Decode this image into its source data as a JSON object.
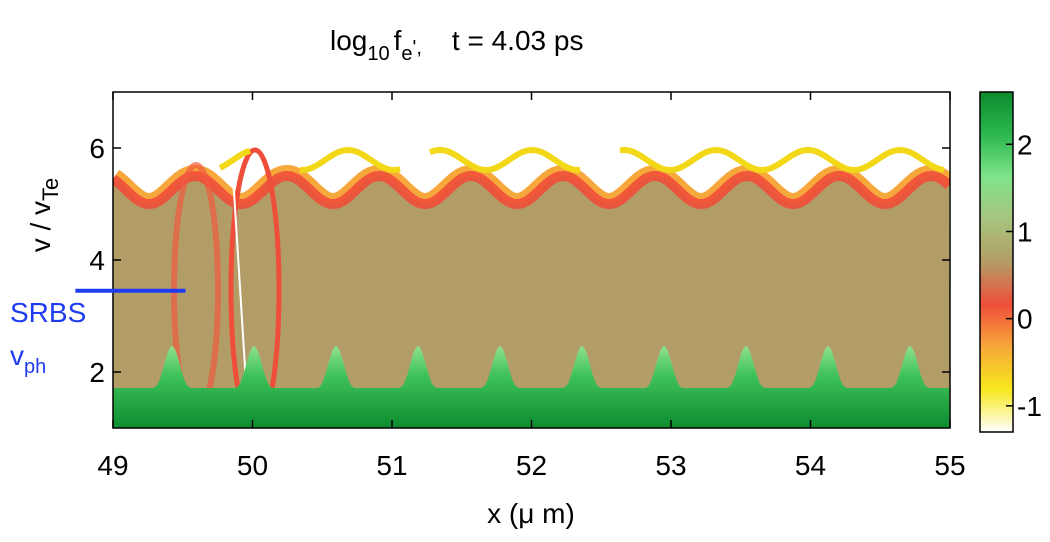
{
  "chart_data": {
    "type": "heatmap",
    "title_parts": [
      "log",
      "10",
      "f",
      "e",
      "',",
      "t = 4.03 ps"
    ],
    "ylabel_parts": [
      "v / v",
      "Te"
    ],
    "xlabel": "x  (μ m)",
    "xlim": [
      49,
      55
    ],
    "xticks": [
      49,
      50,
      51,
      52,
      53,
      54,
      55
    ],
    "ylim": [
      1,
      7
    ],
    "yticks": [
      2,
      4,
      6
    ],
    "clim": [
      -1.3,
      2.6
    ],
    "cticks": [
      -1,
      0,
      1,
      2
    ],
    "colormap": [
      "#ffffff",
      "#f7e81c",
      "#f7a83a",
      "#ef4e3a",
      "#b39d66",
      "#a8c47e",
      "#7fe38a",
      "#2cb84e",
      "#0b8a2e"
    ],
    "annotation": {
      "label": "SRBS",
      "symbol": "v",
      "subscript": "ph",
      "y": 3.45,
      "x": [
        48.73,
        49.52
      ],
      "color": "#1f3cf0"
    }
  }
}
